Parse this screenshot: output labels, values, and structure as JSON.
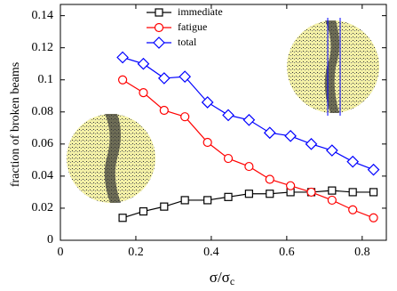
{
  "chart_data": {
    "type": "line",
    "xlabel": "σ/σ",
    "xlabel_subscript": "c",
    "ylabel": "fraction of broken beams",
    "x": [
      0.165,
      0.22,
      0.275,
      0.33,
      0.39,
      0.445,
      0.5,
      0.555,
      0.61,
      0.665,
      0.72,
      0.775,
      0.83
    ],
    "series": [
      {
        "name": "immediate",
        "color": "#000000",
        "marker": "square",
        "values": [
          0.014,
          0.018,
          0.021,
          0.025,
          0.025,
          0.027,
          0.029,
          0.029,
          0.03,
          0.03,
          0.031,
          0.03,
          0.03
        ]
      },
      {
        "name": "fatigue",
        "color": "#ff0000",
        "marker": "circle",
        "values": [
          0.1,
          0.092,
          0.081,
          0.077,
          0.061,
          0.051,
          0.046,
          0.038,
          0.034,
          0.03,
          0.025,
          0.019,
          0.014
        ]
      },
      {
        "name": "total",
        "color": "#0000ff",
        "marker": "diamond",
        "values": [
          0.114,
          0.11,
          0.101,
          0.102,
          0.086,
          0.078,
          0.075,
          0.067,
          0.065,
          0.06,
          0.056,
          0.049,
          0.044
        ]
      }
    ],
    "xlim": [
      0,
      0.864
    ],
    "ylim": [
      0,
      0.147
    ],
    "xticks": [
      0,
      0.2,
      0.4,
      0.6,
      0.8
    ],
    "yticks": [
      0,
      0.02,
      0.04,
      0.06,
      0.08,
      0.1,
      0.12,
      0.14
    ]
  }
}
